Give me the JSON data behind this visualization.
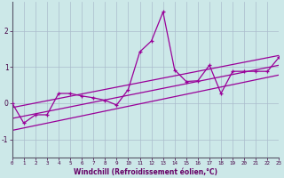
{
  "xlabel": "Windchill (Refroidissement éolien,°C)",
  "x_ticks": [
    0,
    1,
    2,
    3,
    4,
    5,
    6,
    7,
    8,
    9,
    10,
    11,
    12,
    13,
    14,
    15,
    16,
    17,
    18,
    19,
    20,
    21,
    22,
    23
  ],
  "ylim": [
    -1.5,
    2.8
  ],
  "xlim": [
    0,
    23
  ],
  "yticks": [
    -1,
    0,
    1,
    2
  ],
  "main_line_x": [
    0,
    1,
    2,
    3,
    4,
    5,
    6,
    7,
    8,
    9,
    10,
    11,
    12,
    13,
    14,
    15,
    16,
    17,
    18,
    19,
    20,
    21,
    22,
    23
  ],
  "main_line_y": [
    0.0,
    -0.55,
    -0.32,
    -0.32,
    0.27,
    0.27,
    0.2,
    0.15,
    0.08,
    -0.05,
    0.38,
    1.42,
    1.72,
    2.52,
    0.92,
    0.6,
    0.62,
    1.05,
    0.27,
    0.88,
    0.88,
    0.88,
    0.88,
    1.27
  ],
  "regression_line": [
    [
      0,
      23
    ],
    [
      -0.42,
      1.05
    ]
  ],
  "upper_line": [
    [
      0,
      23
    ],
    [
      -0.12,
      1.32
    ]
  ],
  "lower_line": [
    [
      0,
      23
    ],
    [
      -0.75,
      0.78
    ]
  ],
  "line_color": "#990099",
  "bg_color": "#cce8e8",
  "grid_color": "#aabccc"
}
